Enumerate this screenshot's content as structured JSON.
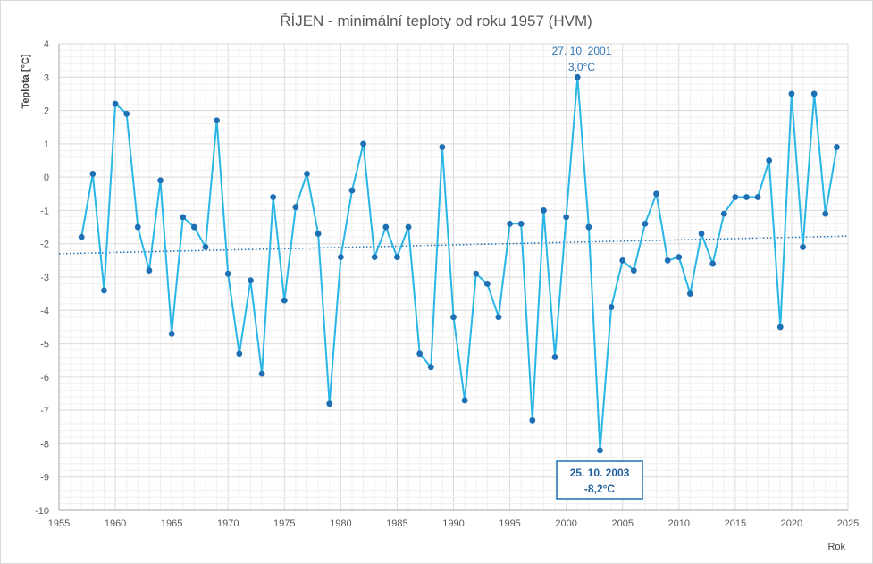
{
  "chart_data": {
    "type": "line",
    "title": "ŘÍJEN - minimální teploty od roku 1957 (HVM)",
    "xlabel": "Rok",
    "ylabel": "Teplota [°C]",
    "xlim": [
      1955,
      2025
    ],
    "ylim": [
      -10,
      4
    ],
    "x_ticks": [
      "1955",
      "1960",
      "1965",
      "1970",
      "1975",
      "1980",
      "1985",
      "1990",
      "1995",
      "2000",
      "2005",
      "2010",
      "2015",
      "2020",
      "2025"
    ],
    "y_ticks": [
      "4",
      "3",
      "2",
      "1",
      "0",
      "-1",
      "-2",
      "-3",
      "-4",
      "-5",
      "-6",
      "-7",
      "-8",
      "-9",
      "-10"
    ],
    "grid": true,
    "series": [
      {
        "color": "#29b6e6",
        "marker_color": "#1f6fb4",
        "x": [
          1957,
          1958,
          1959,
          1960,
          1961,
          1962,
          1963,
          1964,
          1965,
          1966,
          1967,
          1968,
          1969,
          1970,
          1971,
          1972,
          1973,
          1974,
          1975,
          1976,
          1977,
          1978,
          1979,
          1980,
          1981,
          1982,
          1983,
          1984,
          1985,
          1986,
          1987,
          1988,
          1989,
          1990,
          1991,
          1992,
          1993,
          1994,
          1995,
          1996,
          1997,
          1998,
          1999,
          2000,
          2001,
          2002,
          2003,
          2004,
          2005,
          2006,
          2007,
          2008,
          2009,
          2010,
          2011,
          2012,
          2013,
          2014,
          2015,
          2016,
          2017,
          2018,
          2019,
          2020,
          2021,
          2022,
          2023,
          2024
        ],
        "values": [
          -1.8,
          0.1,
          -3.4,
          2.2,
          1.9,
          -1.5,
          -2.8,
          -0.1,
          -4.7,
          -1.2,
          -1.5,
          -2.1,
          1.7,
          -2.9,
          -5.3,
          -3.1,
          -5.9,
          -0.6,
          -3.7,
          -0.9,
          0.1,
          -1.7,
          -6.8,
          -2.4,
          -0.4,
          1.0,
          -2.4,
          -1.5,
          -2.4,
          -1.5,
          -5.3,
          -5.7,
          0.9,
          -4.2,
          -6.7,
          -2.9,
          -3.2,
          -4.2,
          -1.4,
          -1.4,
          -7.3,
          -1.0,
          -5.4,
          -1.2,
          3.0,
          -1.5,
          -8.2,
          -3.9,
          -2.5,
          -2.8,
          -1.4,
          -0.5,
          -2.5,
          -2.4,
          -3.5,
          -1.7,
          -2.6,
          -1.1,
          -0.6,
          -0.6,
          -0.6,
          0.5,
          -4.5,
          2.5,
          -2.1,
          2.5,
          -1.1,
          0.9
        ]
      }
    ],
    "trendline": {
      "style": "dotted",
      "color": "#1f6fb4",
      "start": [
        1955,
        -2.3
      ],
      "end": [
        2025,
        -1.77
      ]
    },
    "annotations": {
      "max": {
        "x": 2001,
        "y": 3.0,
        "date": "27. 10. 2001",
        "value": "3,0°C"
      },
      "min": {
        "x": 2003,
        "y": -8.2,
        "date": "25. 10. 2003",
        "value": "-8,2°C"
      }
    }
  }
}
